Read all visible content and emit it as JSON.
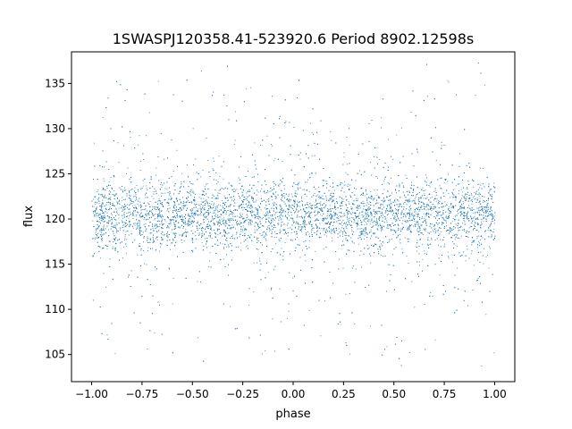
{
  "chart_data": {
    "type": "scatter",
    "title": "1SWASPJ120358.41-523920.6 Period 8902.12598s",
    "xlabel": "phase",
    "ylabel": "flux",
    "xlim": [
      -1.1,
      1.1
    ],
    "ylim": [
      102,
      138.5
    ],
    "xticks": [
      -1.0,
      -0.75,
      -0.5,
      -0.25,
      0.0,
      0.25,
      0.5,
      0.75,
      1.0
    ],
    "xtick_labels": [
      "−1.00",
      "−0.75",
      "−0.50",
      "−0.25",
      "0.00",
      "0.25",
      "0.50",
      "0.75",
      "1.00"
    ],
    "yticks": [
      105,
      110,
      115,
      120,
      125,
      130,
      135
    ],
    "ytick_labels": [
      "105",
      "110",
      "115",
      "120",
      "125",
      "130",
      "135"
    ],
    "grid": false,
    "legend": "none",
    "marker_color": "#1f77b4",
    "series": [
      {
        "x_range": [
          -1.0,
          1.0
        ],
        "y_center": 120.5,
        "y_core_spread": 2.5,
        "y_min": 103.5,
        "y_max": 137.5
      }
    ]
  }
}
